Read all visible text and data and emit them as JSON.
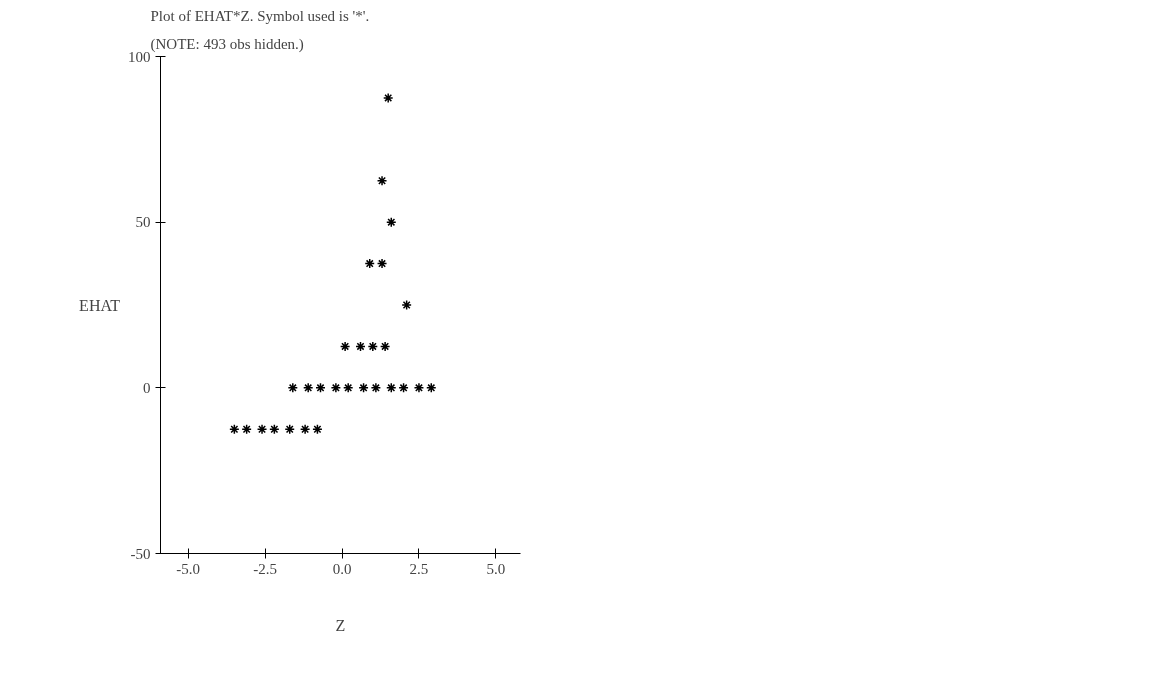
{
  "chart_data": {
    "type": "scatter",
    "title": "Plot of EHAT*Z.  Symbol used is '*'.",
    "annotations": [
      "(NOTE: 493 obs hidden.)"
    ],
    "xlabel": "Z",
    "ylabel": "EHAT",
    "x": [
      1.5,
      1.3,
      1.6,
      0.9,
      1.3,
      2.1,
      0.1,
      0.6,
      1.0,
      1.4,
      -1.6,
      -1.1,
      -0.7,
      -0.2,
      0.2,
      0.7,
      1.1,
      1.6,
      2.0,
      2.5,
      2.9,
      -3.5,
      -3.1,
      -2.6,
      -2.2,
      -1.7,
      -1.2,
      -0.8
    ],
    "values": [
      87.5,
      62.5,
      50,
      37.5,
      37.5,
      25,
      12.5,
      12.5,
      12.5,
      12.5,
      0,
      0,
      0,
      0,
      0,
      0,
      0,
      0,
      0,
      0,
      0,
      -12.5,
      -12.5,
      -12.5,
      -12.5,
      -12.5,
      -12.5,
      -12.5
    ],
    "color": "#000000",
    "marker": "cross",
    "xlim": [
      -5.9,
      5.8
    ],
    "ylim": [
      -50,
      100
    ],
    "xticks": [
      {
        "value": -5,
        "label": "-5.0"
      },
      {
        "value": -2.5,
        "label": "-2.5"
      },
      {
        "value": 0,
        "label": "0.0"
      },
      {
        "value": 2.5,
        "label": "2.5"
      },
      {
        "value": 5,
        "label": "5.0"
      }
    ],
    "yticks": [
      -50,
      0,
      50,
      100
    ]
  }
}
